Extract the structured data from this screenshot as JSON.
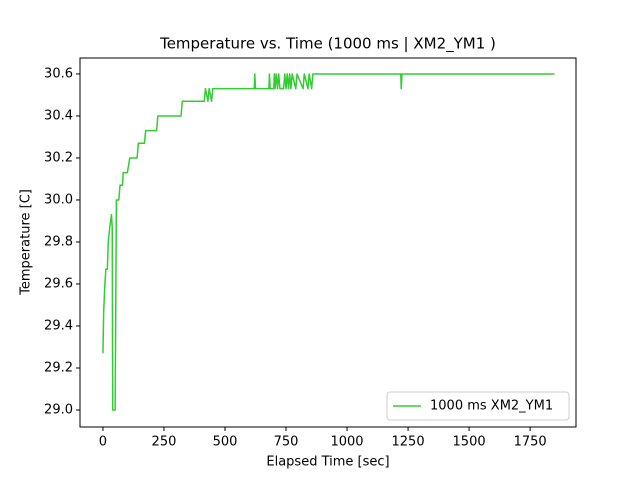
{
  "chart_data": {
    "type": "line",
    "title": "Temperature vs. Time (1000 ms | XM2_YM1 )",
    "x_label": "Elapsed Time [sec]",
    "y_label": "Temperature [C]",
    "x": [
      0,
      3,
      8,
      12,
      18,
      22,
      28,
      35,
      38,
      40,
      50,
      55,
      65,
      70,
      80,
      83,
      100,
      110,
      140,
      145,
      170,
      175,
      220,
      225,
      320,
      325,
      415,
      420,
      430,
      435,
      445,
      450,
      620,
      622,
      625,
      680,
      682,
      685,
      700,
      702,
      705,
      710,
      715,
      720,
      725,
      740,
      745,
      750,
      755,
      760,
      765,
      770,
      775,
      790,
      795,
      820,
      825,
      840,
      845,
      855,
      860,
      1220,
      1222,
      1225,
      1850
    ],
    "series": [
      {
        "name": "1000 ms XM2_YM1",
        "color": "#32cd32",
        "values": [
          29.27,
          29.47,
          29.6,
          29.67,
          29.67,
          29.8,
          29.87,
          29.93,
          29.87,
          29.0,
          29.0,
          30.0,
          30.0,
          30.07,
          30.07,
          30.13,
          30.13,
          30.2,
          30.2,
          30.27,
          30.27,
          30.33,
          30.33,
          30.4,
          30.4,
          30.47,
          30.47,
          30.53,
          30.47,
          30.53,
          30.47,
          30.53,
          30.53,
          30.6,
          30.53,
          30.53,
          30.6,
          30.53,
          30.53,
          30.6,
          30.53,
          30.6,
          30.53,
          30.6,
          30.53,
          30.53,
          30.6,
          30.53,
          30.6,
          30.53,
          30.6,
          30.53,
          30.6,
          30.53,
          30.6,
          30.53,
          30.6,
          30.53,
          30.6,
          30.53,
          30.6,
          30.6,
          30.53,
          30.6,
          30.6
        ]
      }
    ],
    "xlim": [
      -94,
      1938
    ],
    "ylim": [
      28.919,
      30.676
    ],
    "xticks": [
      0,
      250,
      500,
      750,
      1000,
      1250,
      1500,
      1750
    ],
    "yticks": [
      {
        "value": 29,
        "label": "29.0"
      },
      29.2,
      29.4,
      29.6,
      29.8,
      {
        "value": 30,
        "label": "30.0"
      },
      30.2,
      30.4,
      30.6
    ],
    "legend": "lower right"
  }
}
